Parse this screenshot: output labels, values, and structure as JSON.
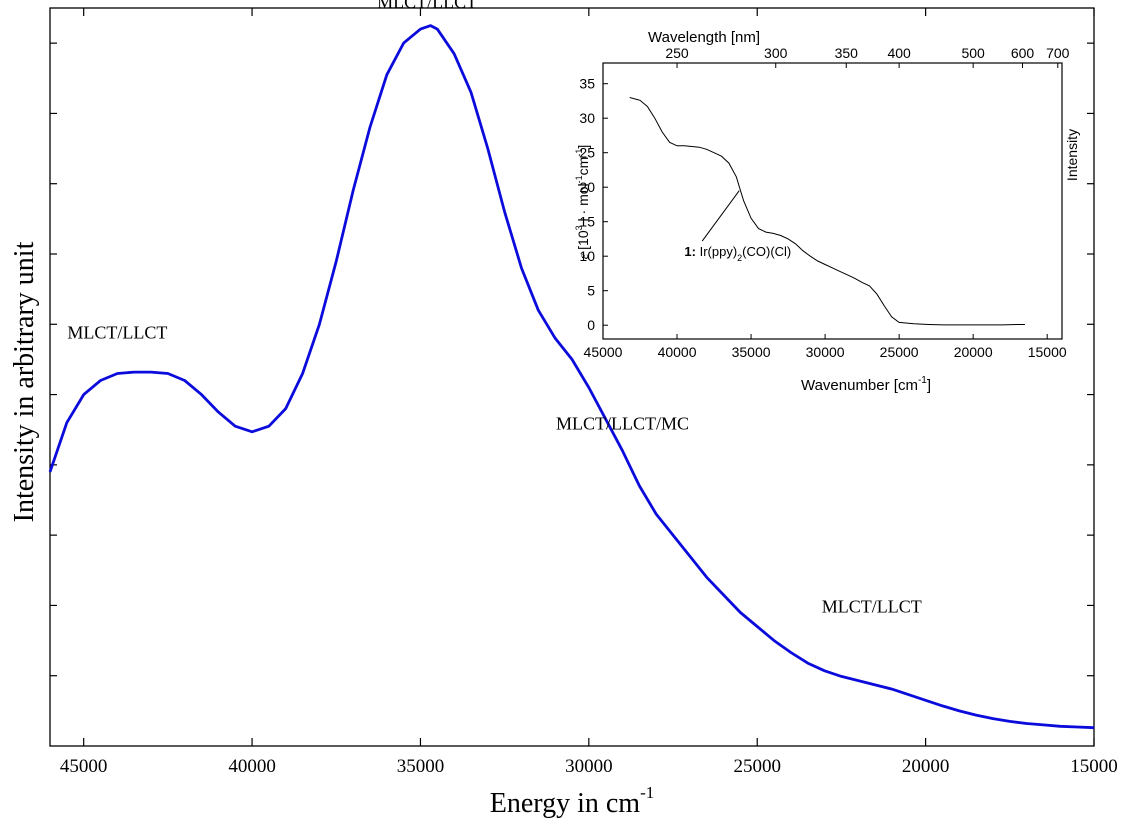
{
  "chart_data": [
    {
      "type": "line",
      "xlabel": "Energy in cm",
      "xlabel_superscript": "-1",
      "ylabel": "Intensity in arbitrary unit",
      "xlim": [
        46000,
        15000
      ],
      "ylim": [
        0,
        1.05
      ],
      "x_inverted": true,
      "x_ticks": [
        45000,
        40000,
        35000,
        30000,
        25000,
        20000,
        15000
      ],
      "y_tick_labels_shown": false,
      "grid": false,
      "line_color": "#0b0bdc",
      "series": [
        {
          "x": [
            46000,
            45500,
            45000,
            44500,
            44000,
            43500,
            43000,
            42500,
            42000,
            41500,
            41000,
            40500,
            40000,
            39500,
            39000,
            38500,
            38000,
            37500,
            37000,
            36500,
            36000,
            35500,
            35000,
            34700,
            34500,
            34000,
            33500,
            33000,
            32500,
            32000,
            31500,
            31000,
            30500,
            30000,
            29500,
            29000,
            28500,
            28000,
            27500,
            27000,
            26500,
            26000,
            25500,
            25000,
            24500,
            24000,
            23500,
            23000,
            22500,
            22000,
            21500,
            21000,
            20500,
            20000,
            19500,
            19000,
            18500,
            18000,
            17500,
            17000,
            16500,
            16000,
            15500,
            15000
          ],
          "y": [
            0.39,
            0.46,
            0.5,
            0.52,
            0.53,
            0.532,
            0.532,
            0.53,
            0.52,
            0.5,
            0.475,
            0.455,
            0.447,
            0.455,
            0.48,
            0.53,
            0.6,
            0.69,
            0.79,
            0.88,
            0.955,
            1.0,
            1.02,
            1.025,
            1.02,
            0.985,
            0.93,
            0.85,
            0.76,
            0.68,
            0.62,
            0.58,
            0.55,
            0.51,
            0.465,
            0.42,
            0.37,
            0.33,
            0.3,
            0.27,
            0.24,
            0.215,
            0.19,
            0.17,
            0.15,
            0.133,
            0.118,
            0.107,
            0.099,
            0.093,
            0.087,
            0.081,
            0.073,
            0.065,
            0.057,
            0.05,
            0.044,
            0.039,
            0.035,
            0.032,
            0.03,
            0.028,
            0.027,
            0.026
          ]
        }
      ],
      "annotations": [
        {
          "text": "MLCT/LLCT",
          "x": 44000,
          "y": 0.58
        },
        {
          "text": "MLCT/LLCT",
          "x": 34800,
          "y": 1.05
        },
        {
          "text": "MLCT/LLCT/MC",
          "x": 29000,
          "y": 0.45
        },
        {
          "text": "MLCT/LLCT",
          "x": 21600,
          "y": 0.19
        }
      ]
    },
    {
      "type": "line",
      "title": "",
      "top_axis_label": "Wavelength [nm]",
      "top_axis_ticks": [
        250,
        300,
        350,
        400,
        500,
        600,
        700
      ],
      "xlabel": "Wavenumber [cm",
      "xlabel_superscript": "-1",
      "xlabel_suffix": "]",
      "ylabel_symbol": "ε",
      "ylabel_parts": [
        " [10",
        "3",
        " l · mol",
        "-1",
        "cm",
        "-1",
        "]"
      ],
      "right_label": "Intensity",
      "xlim": [
        45000,
        14000
      ],
      "ylim": [
        -2,
        38
      ],
      "x_inverted": true,
      "x_ticks": [
        45000,
        40000,
        35000,
        30000,
        25000,
        20000,
        15000
      ],
      "y_ticks": [
        0,
        5,
        10,
        15,
        20,
        25,
        30,
        35
      ],
      "grid": false,
      "series": [
        {
          "x": [
            43200,
            42500,
            42000,
            41500,
            41000,
            40500,
            40000,
            39500,
            39000,
            38500,
            38000,
            37500,
            37000,
            36500,
            36000,
            35500,
            35000,
            34500,
            34000,
            33500,
            33000,
            32500,
            32000,
            31500,
            31000,
            30500,
            30000,
            29500,
            29000,
            28500,
            28000,
            27500,
            27000,
            26500,
            26000,
            25500,
            25000,
            24000,
            23000,
            22000,
            21000,
            20000,
            19000,
            18000,
            17000,
            16500
          ],
          "y": [
            33.0,
            32.6,
            31.7,
            30.0,
            28.0,
            26.5,
            26.0,
            26.0,
            25.9,
            25.8,
            25.5,
            25.0,
            24.5,
            23.5,
            21.5,
            18.0,
            15.5,
            14.0,
            13.5,
            13.3,
            13.0,
            12.5,
            11.8,
            10.8,
            10.0,
            9.3,
            8.8,
            8.3,
            7.8,
            7.3,
            6.8,
            6.2,
            5.7,
            4.5,
            2.8,
            1.2,
            0.4,
            0.2,
            0.1,
            0.05,
            0.05,
            0.05,
            0.05,
            0.05,
            0.1,
            0.1
          ]
        }
      ],
      "annotation": {
        "bold": "1:",
        "text_main": " Ir(ppy)",
        "text_sub": "2",
        "text_rest": "(CO)(Cl)",
        "x": 39500,
        "y": 10,
        "pointer_to": [
          35800,
          19.5
        ],
        "pointer_from": [
          38300,
          12.2
        ]
      }
    }
  ]
}
